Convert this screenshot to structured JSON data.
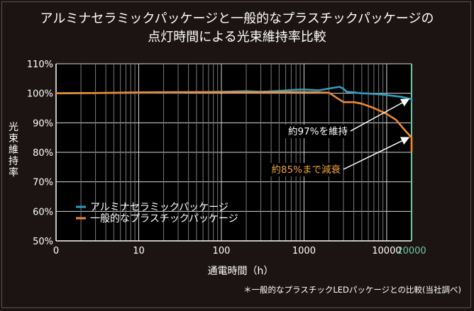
{
  "chart_data": {
    "type": "line",
    "title": "アルミナセラミックパッケージと一般的なプラスチックパッケージの",
    "subtitle": "点灯時間による光束維持率比較",
    "xlabel": "通電時間（h）",
    "ylabel": "光束維持率",
    "xscale": "log",
    "xlim": [
      1,
      20000
    ],
    "ylim": [
      50,
      110
    ],
    "x_ticks": [
      "0",
      "10",
      "100",
      "1000",
      "10000"
    ],
    "x_tick_values": [
      1,
      10,
      100,
      1000,
      10000
    ],
    "y_ticks": [
      "50%",
      "60%",
      "70%",
      "80%",
      "90%",
      "100%",
      "110%"
    ],
    "y_tick_values": [
      50,
      60,
      70,
      80,
      90,
      100,
      110
    ],
    "grid": true,
    "legend_position": "bottom-left",
    "highlight": {
      "x": 20000,
      "label": "20000",
      "color": "#6fc8a5"
    },
    "series": [
      {
        "name": "アルミナセラミックパッケージ",
        "color": "#2f9ec0",
        "x": [
          1,
          3,
          10,
          30,
          60,
          100,
          200,
          300,
          500,
          800,
          1000,
          1500,
          2000,
          2700,
          3000,
          3300,
          4000,
          5000,
          6000,
          8000,
          10000,
          15000,
          20000,
          26000
        ],
        "y": [
          100,
          100.1,
          100.2,
          100.3,
          100.4,
          100.5,
          100.7,
          100.5,
          100.8,
          101.2,
          101.3,
          101.0,
          101.6,
          102.2,
          101.5,
          100.5,
          100.3,
          100.0,
          99.9,
          99.7,
          99.4,
          98.8,
          98.0,
          97.0
        ]
      },
      {
        "name": "一般的なプラスチックパッケージ",
        "color": "#f08a2d",
        "x": [
          1,
          3,
          10,
          30,
          100,
          300,
          800,
          1000,
          1500,
          2000,
          3000,
          4000,
          5000,
          7000,
          10000,
          13000,
          16000,
          20000,
          23000,
          26000
        ],
        "y": [
          100,
          100.1,
          100.3,
          100.4,
          100.4,
          100.4,
          100.4,
          100.4,
          100.3,
          100.2,
          97.0,
          97.0,
          96.5,
          95.0,
          93.0,
          91.0,
          88.0,
          85.0,
          82.5,
          80.0
        ]
      }
    ],
    "annotations": [
      {
        "text": "約97%を維持",
        "color": "#ffffff",
        "target_x": 20000,
        "target_y": 98
      },
      {
        "text": "約85%まで減衰",
        "color": "#f2a33a",
        "target_x": 20000,
        "target_y": 85
      }
    ],
    "footnote": "＊一般的なプラスチックLEDパッケージとの比較(当社調べ)"
  }
}
